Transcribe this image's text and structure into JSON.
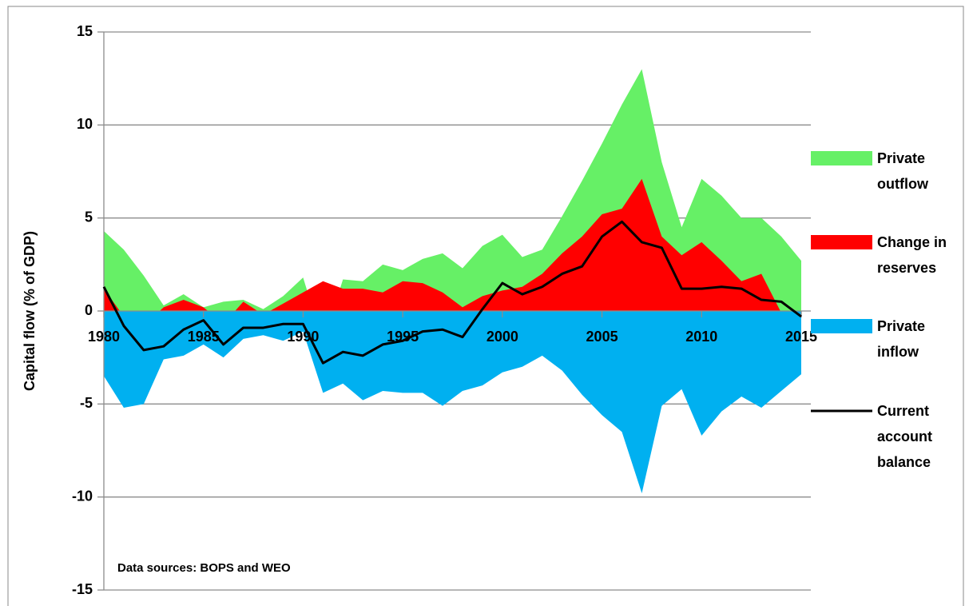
{
  "chart_data": {
    "type": "area",
    "y_label": "Capital flow (% of GDP)",
    "annotation": "Data sources: BOPS and WEO",
    "x": [
      1980,
      1981,
      1982,
      1983,
      1984,
      1985,
      1986,
      1987,
      1988,
      1989,
      1990,
      1991,
      1992,
      1993,
      1994,
      1995,
      1996,
      1997,
      1998,
      1999,
      2000,
      2001,
      2002,
      2003,
      2004,
      2005,
      2006,
      2007,
      2008,
      2009,
      2010,
      2011,
      2012,
      2013,
      2014,
      2015
    ],
    "xlim": [
      1980,
      2015
    ],
    "xticks": [
      1980,
      1985,
      1990,
      1995,
      2000,
      2005,
      2010,
      2015
    ],
    "ylim": [
      -15,
      15
    ],
    "yticks": [
      -15,
      -10,
      -5,
      0,
      5,
      10,
      15
    ],
    "grid": true,
    "series": [
      {
        "name": "Private outflow",
        "color": "#66f066",
        "kind": "area",
        "values": [
          4.3,
          3.3,
          1.9,
          0.3,
          0.9,
          0.2,
          0.5,
          0.6,
          0.1,
          0.8,
          1.8,
          -1.7,
          1.7,
          1.6,
          2.5,
          2.2,
          2.8,
          3.1,
          2.3,
          3.5,
          4.1,
          2.9,
          3.3,
          5.1,
          7.0,
          9.0,
          11.1,
          13.0,
          8.0,
          4.5,
          7.1,
          6.2,
          5.0,
          5.0,
          4.0,
          2.7
        ]
      },
      {
        "name": "Change in reserves",
        "color": "#ff0000",
        "kind": "area",
        "values": [
          1.2,
          -0.3,
          -0.8,
          0.2,
          0.6,
          0.2,
          -0.7,
          0.5,
          -0.2,
          0.4,
          1.0,
          1.6,
          1.2,
          1.2,
          1.0,
          1.6,
          1.5,
          1.0,
          0.2,
          0.8,
          1.1,
          1.3,
          2.0,
          3.1,
          4.0,
          5.2,
          5.5,
          7.1,
          4.0,
          3.0,
          3.7,
          2.7,
          1.6,
          2.0,
          -0.1,
          -1.5
        ]
      },
      {
        "name": "Private inflow",
        "color": "#00b0f0",
        "kind": "area",
        "values": [
          -3.5,
          -5.2,
          -5.0,
          -2.6,
          -2.4,
          -1.8,
          -2.5,
          -1.5,
          -1.3,
          -1.6,
          -1.1,
          -4.4,
          -3.9,
          -4.8,
          -4.3,
          -4.4,
          -4.4,
          -5.1,
          -4.3,
          -4.0,
          -3.3,
          -3.0,
          -2.4,
          -3.2,
          -4.5,
          -5.6,
          -6.5,
          -9.8,
          -5.1,
          -4.2,
          -6.7,
          -5.4,
          -4.6,
          -5.2,
          -4.3,
          -3.4
        ]
      },
      {
        "name": "Current account balance",
        "color": "#000000",
        "kind": "line",
        "values": [
          1.3,
          -0.8,
          -2.1,
          -1.9,
          -1.0,
          -0.5,
          -1.8,
          -0.9,
          -0.9,
          -0.7,
          -0.7,
          -2.8,
          -2.2,
          -2.4,
          -1.8,
          -1.6,
          -1.1,
          -1.0,
          -1.4,
          0.1,
          1.5,
          0.9,
          1.3,
          2.0,
          2.4,
          4.0,
          4.8,
          3.7,
          3.4,
          1.2,
          1.2,
          1.3,
          1.2,
          0.6,
          0.5,
          -0.3
        ]
      }
    ]
  }
}
